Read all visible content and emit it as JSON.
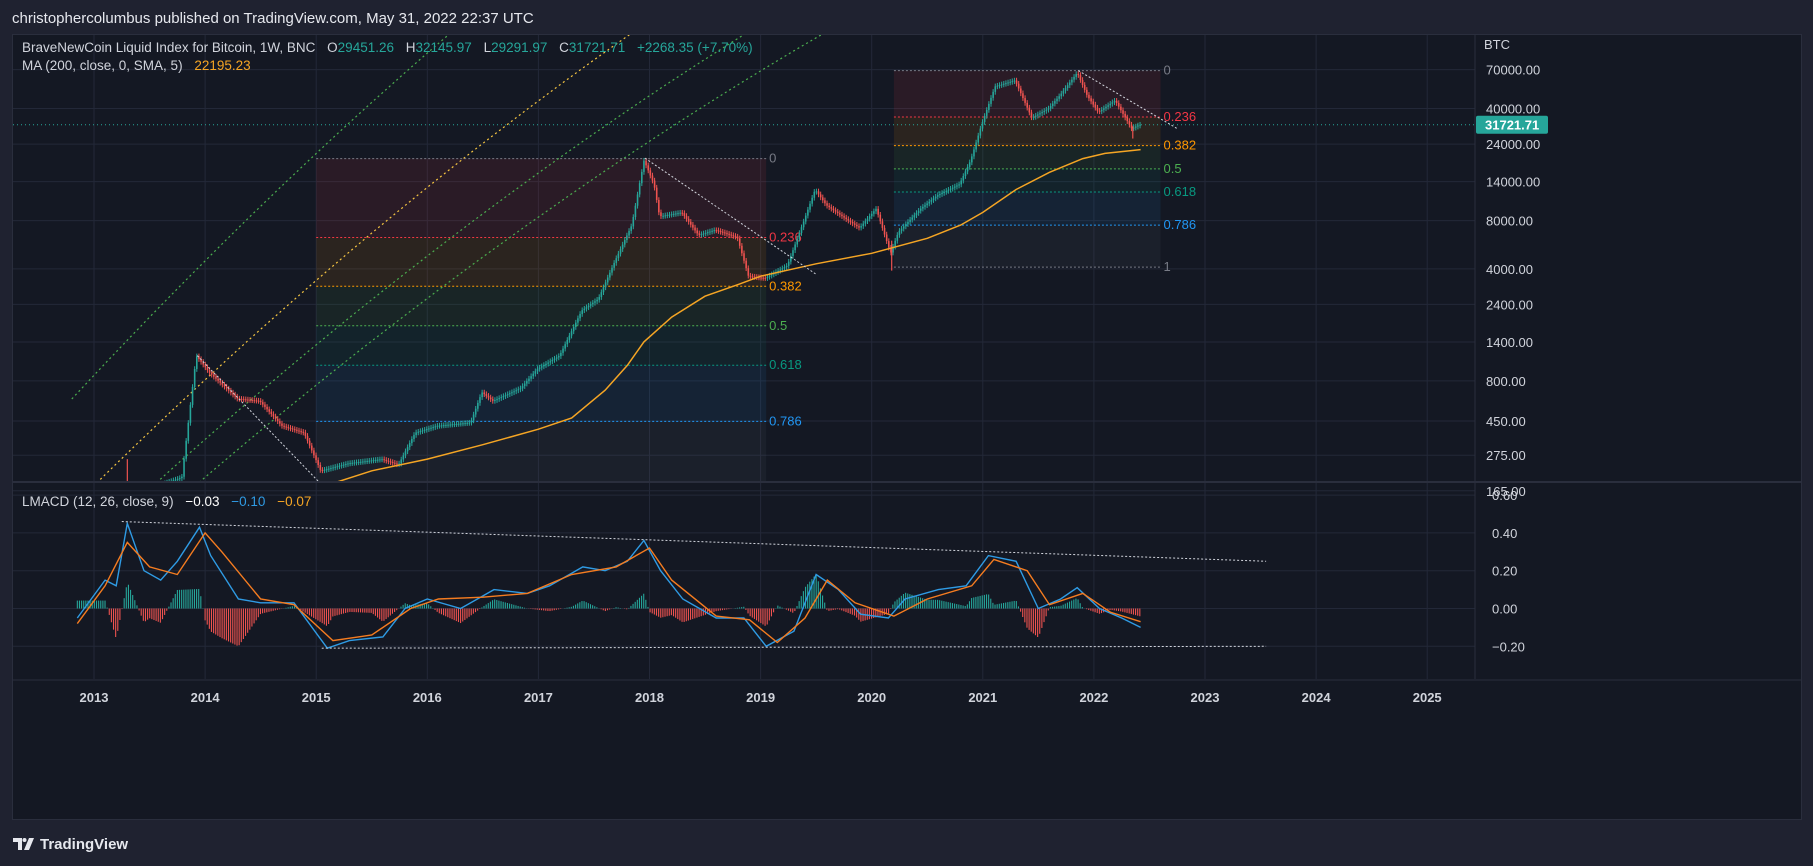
{
  "header": {
    "published": "christophercolumbus published on TradingView.com, May 31, 2022 22:37 UTC"
  },
  "legend": {
    "symbol": "BraveNewCoin Liquid Index for Bitcoin, 1W, BNC",
    "open_label": "O",
    "open": "29451.26",
    "high_label": "H",
    "high": "32145.97",
    "low_label": "L",
    "low": "29291.97",
    "close_label": "C",
    "close": "31721.71",
    "change": "+2268.35 (+7.70%)",
    "ma_label": "MA (200, close, 0, SMA, 5)",
    "ma_value": "22195.23"
  },
  "macd_legend": {
    "label": "LMACD (12, 26, close, 9)",
    "v1": "−0.03",
    "v2": "−0.10",
    "v3": "−0.07"
  },
  "footer": {
    "brand": "TradingView"
  },
  "colors": {
    "background": "#141823",
    "up": "#26a69a",
    "down": "#ef5350",
    "ma": "#f5a524",
    "macd": "#2f9be4",
    "signal": "#f57c20",
    "price_tag": "#26a69a"
  },
  "chart_data": [
    {
      "type": "candlestick",
      "title": "BraveNewCoin Liquid Index for Bitcoin, 1W, BNC",
      "y_scale": "log",
      "currency": "BTC",
      "last_price": "31721.71",
      "x_ticks": [
        "2013",
        "2014",
        "2015",
        "2016",
        "2017",
        "2018",
        "2019",
        "2020",
        "2021",
        "2022",
        "2023",
        "2024",
        "2025"
      ],
      "y_ticks": [
        "70000.00",
        "40000.00",
        "24000.00",
        "14000.00",
        "8000.00",
        "4000.00",
        "2400.00",
        "1400.00",
        "800.00",
        "450.00",
        "275.00",
        "165.00"
      ],
      "price_path": [
        [
          2012.9,
          135
        ],
        [
          2013.45,
          165
        ],
        [
          2013.8,
          200
        ],
        [
          2013.93,
          1150
        ],
        [
          2014.05,
          900
        ],
        [
          2014.3,
          620
        ],
        [
          2014.5,
          600
        ],
        [
          2014.7,
          420
        ],
        [
          2014.9,
          380
        ],
        [
          2015.05,
          220
        ],
        [
          2015.3,
          245
        ],
        [
          2015.6,
          260
        ],
        [
          2015.75,
          240
        ],
        [
          2015.9,
          380
        ],
        [
          2016.1,
          420
        ],
        [
          2016.4,
          440
        ],
        [
          2016.5,
          680
        ],
        [
          2016.6,
          600
        ],
        [
          2016.85,
          720
        ],
        [
          2017.0,
          950
        ],
        [
          2017.2,
          1150
        ],
        [
          2017.4,
          2200
        ],
        [
          2017.55,
          2600
        ],
        [
          2017.7,
          4500
        ],
        [
          2017.85,
          7500
        ],
        [
          2017.96,
          19000
        ],
        [
          2018.05,
          13500
        ],
        [
          2018.1,
          8500
        ],
        [
          2018.3,
          9000
        ],
        [
          2018.45,
          6500
        ],
        [
          2018.6,
          7000
        ],
        [
          2018.8,
          6300
        ],
        [
          2018.9,
          3600
        ],
        [
          2019.05,
          3500
        ],
        [
          2019.25,
          4200
        ],
        [
          2019.4,
          8000
        ],
        [
          2019.5,
          12500
        ],
        [
          2019.6,
          10000
        ],
        [
          2019.8,
          8000
        ],
        [
          2019.9,
          7200
        ],
        [
          2020.05,
          9500
        ],
        [
          2020.18,
          5000
        ],
        [
          2020.25,
          6800
        ],
        [
          2020.45,
          9500
        ],
        [
          2020.6,
          11500
        ],
        [
          2020.8,
          13500
        ],
        [
          2020.9,
          19000
        ],
        [
          2021.0,
          32000
        ],
        [
          2021.12,
          55000
        ],
        [
          2021.3,
          60000
        ],
        [
          2021.45,
          35000
        ],
        [
          2021.6,
          40000
        ],
        [
          2021.7,
          48000
        ],
        [
          2021.86,
          67000
        ],
        [
          2021.95,
          48000
        ],
        [
          2022.05,
          38000
        ],
        [
          2022.2,
          45000
        ],
        [
          2022.35,
          30000
        ],
        [
          2022.42,
          31721
        ]
      ],
      "wicks": [
        [
          2013.3,
          135,
          260
        ],
        [
          2020.18,
          3900,
          6000
        ],
        [
          2022.35,
          26000,
          31000
        ]
      ],
      "moving_average": {
        "name": "MA (200, close, 0, SMA, 5)",
        "points": [
          [
            2014.7,
            120
          ],
          [
            2015.0,
            170
          ],
          [
            2015.5,
            220
          ],
          [
            2016.0,
            260
          ],
          [
            2016.5,
            320
          ],
          [
            2017.0,
            400
          ],
          [
            2017.3,
            470
          ],
          [
            2017.6,
            700
          ],
          [
            2017.8,
            1000
          ],
          [
            2017.95,
            1400
          ],
          [
            2018.2,
            2000
          ],
          [
            2018.5,
            2700
          ],
          [
            2018.8,
            3200
          ],
          [
            2019.0,
            3600
          ],
          [
            2019.5,
            4300
          ],
          [
            2020.0,
            5000
          ],
          [
            2020.5,
            6200
          ],
          [
            2020.8,
            7500
          ],
          [
            2021.0,
            9000
          ],
          [
            2021.3,
            12500
          ],
          [
            2021.6,
            16000
          ],
          [
            2021.9,
            19500
          ],
          [
            2022.1,
            21000
          ],
          [
            2022.42,
            22195
          ]
        ]
      },
      "fib_2018": {
        "levels": [
          "0",
          "0.236",
          "0.382",
          "0.5",
          "0.618",
          "0.786",
          "1"
        ],
        "top": 19500,
        "bottom": 160,
        "x_start": 2015.0,
        "x_end": 2019.05
      },
      "fib_2021": {
        "levels": [
          "0",
          "0.236",
          "0.382",
          "0.5",
          "0.618",
          "0.786",
          "1"
        ],
        "top": 69000,
        "bottom": 4100,
        "x_start": 2020.2,
        "x_end": 2022.6
      },
      "trendlines": [
        {
          "from": [
            2013.93,
            1150
          ],
          "to": [
            2015.12,
            160
          ]
        },
        {
          "from": [
            2017.96,
            19600
          ],
          "to": [
            2019.5,
            3700
          ]
        },
        {
          "from": [
            2021.86,
            69000
          ],
          "to": [
            2022.75,
            30000
          ]
        }
      ]
    },
    {
      "type": "line",
      "title": "LMACD (12, 26, close, 9)",
      "y_ticks": [
        "0.60",
        "0.40",
        "0.20",
        "0.00",
        "−0.20"
      ],
      "ylim": [
        -0.3,
        0.65
      ],
      "series": [
        {
          "name": "macd",
          "color": "#2f9be4",
          "points": [
            [
              2012.85,
              -0.05
            ],
            [
              2013.1,
              0.15
            ],
            [
              2013.2,
              0.12
            ],
            [
              2013.3,
              0.45
            ],
            [
              2013.45,
              0.2
            ],
            [
              2013.6,
              0.15
            ],
            [
              2013.75,
              0.25
            ],
            [
              2013.95,
              0.43
            ],
            [
              2014.05,
              0.28
            ],
            [
              2014.3,
              0.05
            ],
            [
              2014.5,
              0.03
            ],
            [
              2014.8,
              0.03
            ],
            [
              2015.1,
              -0.21
            ],
            [
              2015.3,
              -0.17
            ],
            [
              2015.6,
              -0.15
            ],
            [
              2015.8,
              0.0
            ],
            [
              2016.0,
              0.05
            ],
            [
              2016.3,
              0.0
            ],
            [
              2016.6,
              0.1
            ],
            [
              2016.9,
              0.08
            ],
            [
              2017.1,
              0.12
            ],
            [
              2017.4,
              0.22
            ],
            [
              2017.6,
              0.2
            ],
            [
              2017.8,
              0.25
            ],
            [
              2017.95,
              0.36
            ],
            [
              2018.1,
              0.2
            ],
            [
              2018.3,
              0.05
            ],
            [
              2018.6,
              -0.05
            ],
            [
              2018.85,
              -0.05
            ],
            [
              2019.05,
              -0.2
            ],
            [
              2019.3,
              -0.12
            ],
            [
              2019.5,
              0.18
            ],
            [
              2019.7,
              0.1
            ],
            [
              2019.9,
              -0.03
            ],
            [
              2020.15,
              -0.05
            ],
            [
              2020.3,
              0.05
            ],
            [
              2020.6,
              0.1
            ],
            [
              2020.85,
              0.12
            ],
            [
              2021.05,
              0.28
            ],
            [
              2021.3,
              0.25
            ],
            [
              2021.5,
              0.0
            ],
            [
              2021.7,
              0.05
            ],
            [
              2021.85,
              0.11
            ],
            [
              2022.05,
              0.0
            ],
            [
              2022.25,
              -0.05
            ],
            [
              2022.42,
              -0.1
            ]
          ]
        },
        {
          "name": "signal",
          "color": "#f57c20",
          "points": [
            [
              2012.85,
              -0.08
            ],
            [
              2013.1,
              0.12
            ],
            [
              2013.3,
              0.35
            ],
            [
              2013.5,
              0.22
            ],
            [
              2013.75,
              0.18
            ],
            [
              2014.0,
              0.4
            ],
            [
              2014.15,
              0.3
            ],
            [
              2014.5,
              0.05
            ],
            [
              2014.8,
              0.02
            ],
            [
              2015.15,
              -0.17
            ],
            [
              2015.5,
              -0.14
            ],
            [
              2015.85,
              0.0
            ],
            [
              2016.1,
              0.05
            ],
            [
              2016.5,
              0.06
            ],
            [
              2016.9,
              0.08
            ],
            [
              2017.3,
              0.18
            ],
            [
              2017.7,
              0.22
            ],
            [
              2018.0,
              0.32
            ],
            [
              2018.2,
              0.15
            ],
            [
              2018.6,
              -0.04
            ],
            [
              2018.9,
              -0.06
            ],
            [
              2019.15,
              -0.18
            ],
            [
              2019.4,
              -0.05
            ],
            [
              2019.6,
              0.15
            ],
            [
              2019.85,
              0.03
            ],
            [
              2020.2,
              -0.04
            ],
            [
              2020.5,
              0.05
            ],
            [
              2020.9,
              0.12
            ],
            [
              2021.1,
              0.26
            ],
            [
              2021.4,
              0.2
            ],
            [
              2021.6,
              0.02
            ],
            [
              2021.9,
              0.08
            ],
            [
              2022.15,
              -0.02
            ],
            [
              2022.42,
              -0.07
            ]
          ]
        }
      ],
      "hist_range": [
        2012.85,
        2022.42
      ],
      "trendlines": [
        {
          "from": [
            2013.25,
            0.46
          ],
          "to": [
            2023.55,
            0.25
          ]
        },
        {
          "from": [
            2015.05,
            -0.21
          ],
          "to": [
            2023.55,
            -0.2
          ]
        }
      ]
    }
  ]
}
